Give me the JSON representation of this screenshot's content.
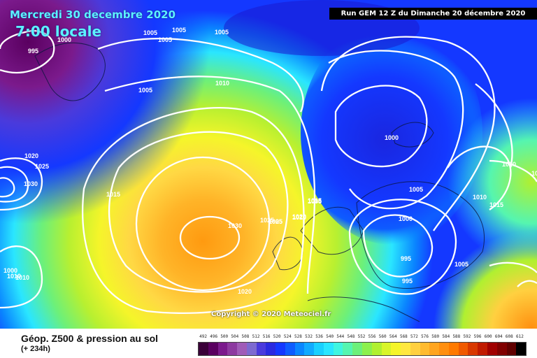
{
  "header": {
    "valid_date": "Mercredi 30 decembre 2020",
    "local_time": "7:00 locale",
    "run_info": "Run GEM 12 Z du Dimanche 20 décembre 2020"
  },
  "footer": {
    "product_title": "Géop. Z500 & pression au sol",
    "lead_time": "(+ 234h)",
    "copyright": "Copyright © 2020 Meteociel.fr"
  },
  "colors": {
    "scale": [
      "#3a0038",
      "#5a0060",
      "#7b1a8c",
      "#8d3aa0",
      "#a05cb8",
      "#7d6ad0",
      "#4a3adc",
      "#2a2ae0",
      "#1438ff",
      "#0e5cff",
      "#0a86ff",
      "#11aaff",
      "#1ad0ff",
      "#2ae6ff",
      "#3ff5e0",
      "#55f5b0",
      "#6cf07a",
      "#8cf04c",
      "#b0f030",
      "#d8f52a",
      "#f5f52a",
      "#ffe840",
      "#ffd040",
      "#ffbb30",
      "#ffa520",
      "#ff8f10",
      "#ff7a00",
      "#f05a00",
      "#d83800",
      "#c01a00",
      "#a00000",
      "#800000",
      "#600000",
      "#000000"
    ],
    "isobar": "#ffffff"
  },
  "scale": {
    "labels": [
      "492",
      "496",
      "500",
      "504",
      "508",
      "512",
      "516",
      "520",
      "524",
      "528",
      "532",
      "536",
      "540",
      "544",
      "548",
      "552",
      "556",
      "560",
      "564",
      "568",
      "572",
      "576",
      "580",
      "584",
      "588",
      "592",
      "596",
      "600",
      "604",
      "608",
      "612"
    ]
  },
  "isobars": {
    "labels": [
      "995",
      "1000",
      "1005",
      "1005",
      "1005",
      "1005",
      "1010",
      "1005",
      "1020",
      "1025",
      "1030",
      "1015",
      "1010",
      "1000",
      "1005",
      "1005",
      "1010",
      "1020",
      "1025",
      "1030",
      "1025",
      "1015",
      "1020",
      "1000",
      "1005",
      "995",
      "995",
      "1005",
      "1015",
      "1010",
      "1020",
      "1030",
      "1010",
      "1000"
    ]
  }
}
